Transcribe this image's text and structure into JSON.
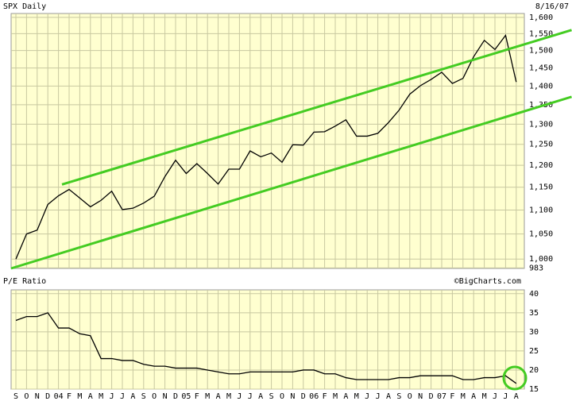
{
  "chart_data": [
    {
      "type": "line",
      "title": "SPX Daily",
      "subtitle": "8/16/07",
      "log_scale": true,
      "grid": true,
      "categories": [
        "S",
        "O",
        "N",
        "D",
        "04",
        "F",
        "M",
        "A",
        "M",
        "J",
        "J",
        "A",
        "S",
        "O",
        "N",
        "D",
        "05",
        "F",
        "M",
        "A",
        "M",
        "J",
        "J",
        "A",
        "S",
        "O",
        "N",
        "D",
        "06",
        "F",
        "M",
        "A",
        "M",
        "J",
        "J",
        "A",
        "S",
        "O",
        "N",
        "D",
        "07",
        "F",
        "M",
        "A",
        "M",
        "J",
        "J",
        "A"
      ],
      "series": [
        {
          "name": "SPX",
          "color": "#000000",
          "values": [
            1000,
            1050,
            1058,
            1112,
            1131,
            1145,
            1126,
            1107,
            1121,
            1141,
            1101,
            1104,
            1115,
            1130,
            1174,
            1212,
            1181,
            1204,
            1181,
            1157,
            1191,
            1191,
            1234,
            1220,
            1229,
            1207,
            1249,
            1248,
            1280,
            1281,
            1295,
            1311,
            1270,
            1270,
            1277,
            1304,
            1336,
            1378,
            1401,
            1418,
            1438,
            1407,
            1421,
            1482,
            1530,
            1503,
            1545,
            1411
          ]
        }
      ],
      "trend_lines": [
        {
          "color": "#44cc22",
          "x": [
            4.33,
            52.2
          ],
          "values": [
            1156,
            1561
          ]
        },
        {
          "color": "#44cc22",
          "x": [
            -0.45,
            52.2
          ],
          "values": [
            982,
            1371
          ]
        }
      ],
      "ylim": [
        982,
        1612
      ],
      "yticks": [
        {
          "value": 1000,
          "label": "1,000"
        },
        {
          "value": 1050,
          "label": "1,050"
        },
        {
          "value": 1100,
          "label": "1,100"
        },
        {
          "value": 1150,
          "label": "1,150"
        },
        {
          "value": 1200,
          "label": "1,200"
        },
        {
          "value": 1250,
          "label": "1,250"
        },
        {
          "value": 1300,
          "label": "1,300"
        },
        {
          "value": 1350,
          "label": "1,350"
        },
        {
          "value": 1400,
          "label": "1,400"
        },
        {
          "value": 1450,
          "label": "1,450"
        },
        {
          "value": 1500,
          "label": "1,500"
        },
        {
          "value": 1550,
          "label": "1,550"
        },
        {
          "value": 1600,
          "label": "1,600"
        },
        983
      ]
    },
    {
      "type": "line",
      "title": "P/E Ratio",
      "subtitle": "©BigCharts.com",
      "grid": true,
      "series": [
        {
          "name": "P/E",
          "color": "#000000",
          "values": [
            33,
            34,
            34,
            35,
            31,
            31,
            29.5,
            29,
            23,
            23,
            22.5,
            22.5,
            21.5,
            21,
            21,
            20.5,
            20.5,
            20.5,
            20,
            19.5,
            19,
            19,
            19.5,
            19.5,
            19.5,
            19.5,
            19.5,
            20,
            20,
            19,
            19,
            18,
            17.5,
            17.5,
            17.5,
            17.5,
            18,
            18,
            18.5,
            18.5,
            18.5,
            18.5,
            17.5,
            17.5,
            18,
            18,
            18.5,
            16.5
          ]
        }
      ],
      "ylim": [
        15,
        41
      ],
      "yticks": [
        15,
        20,
        25,
        30,
        35,
        40
      ]
    }
  ]
}
